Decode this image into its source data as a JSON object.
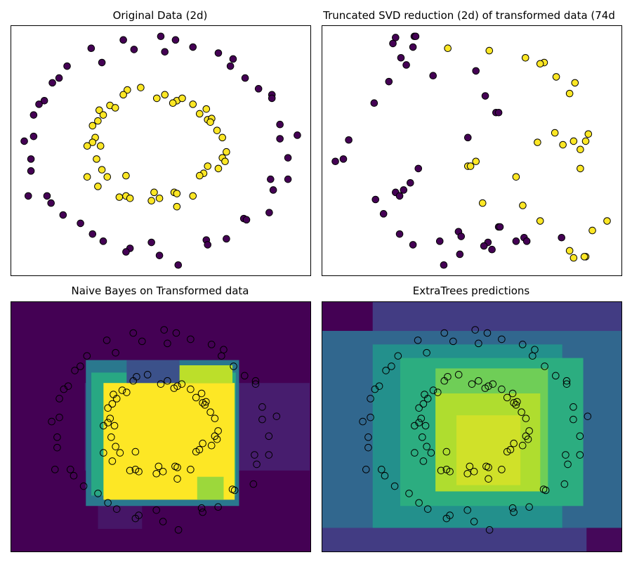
{
  "colors": {
    "class0": "#440154",
    "class1": "#fde725",
    "edge": "#000000",
    "colormap": "viridis"
  },
  "chart_data": [
    {
      "type": "scatter",
      "title": "Original Data (2d)",
      "xlim": [
        -1.12,
        1.12
      ],
      "ylim": [
        -1.05,
        1.05
      ],
      "grid": false,
      "axes_ticks": false,
      "series": [
        {
          "class": 0,
          "color": "#440154",
          "points": [
            [
              -0.28,
              0.93
            ],
            [
              0.0,
              0.96
            ],
            [
              0.11,
              0.93
            ],
            [
              -0.2,
              0.85
            ],
            [
              0.03,
              0.83
            ],
            [
              0.24,
              0.87
            ],
            [
              -0.52,
              0.86
            ],
            [
              -0.7,
              0.71
            ],
            [
              -0.44,
              0.74
            ],
            [
              0.43,
              0.82
            ],
            [
              0.54,
              0.77
            ],
            [
              0.52,
              0.71
            ],
            [
              -0.76,
              0.61
            ],
            [
              -0.81,
              0.57
            ],
            [
              0.63,
              0.61
            ],
            [
              -0.87,
              0.42
            ],
            [
              -0.91,
              0.39
            ],
            [
              0.73,
              0.52
            ],
            [
              0.83,
              0.47
            ],
            [
              0.83,
              0.44
            ],
            [
              -0.95,
              0.3
            ],
            [
              0.89,
              0.22
            ],
            [
              -1.02,
              0.08
            ],
            [
              -0.95,
              0.12
            ],
            [
              1.02,
              0.13
            ],
            [
              0.89,
              0.1
            ],
            [
              -0.97,
              -0.07
            ],
            [
              0.95,
              -0.06
            ],
            [
              -0.97,
              -0.17
            ],
            [
              0.82,
              -0.24
            ],
            [
              0.95,
              -0.24
            ],
            [
              0.84,
              -0.33
            ],
            [
              -0.99,
              -0.38
            ],
            [
              -0.85,
              -0.38
            ],
            [
              -0.82,
              -0.44
            ],
            [
              -0.73,
              -0.54
            ],
            [
              0.81,
              -0.52
            ],
            [
              0.62,
              -0.57
            ],
            [
              0.64,
              -0.58
            ],
            [
              -0.6,
              -0.61
            ],
            [
              -0.51,
              -0.7
            ],
            [
              -0.43,
              -0.76
            ],
            [
              0.49,
              -0.74
            ],
            [
              0.34,
              -0.75
            ],
            [
              0.35,
              -0.79
            ],
            [
              -0.07,
              -0.77
            ],
            [
              -0.23,
              -0.82
            ],
            [
              -0.26,
              -0.85
            ],
            [
              -0.01,
              -0.88
            ],
            [
              0.13,
              -0.96
            ]
          ]
        },
        {
          "class": 1,
          "color": "#fde725",
          "points": [
            [
              -0.25,
              0.51
            ],
            [
              -0.15,
              0.53
            ],
            [
              -0.28,
              0.47
            ],
            [
              -0.03,
              0.44
            ],
            [
              0.03,
              0.47
            ],
            [
              0.12,
              0.42
            ],
            [
              0.16,
              0.44
            ],
            [
              0.09,
              0.4
            ],
            [
              0.24,
              0.39
            ],
            [
              -0.38,
              0.38
            ],
            [
              -0.34,
              0.36
            ],
            [
              -0.46,
              0.34
            ],
            [
              -0.43,
              0.3
            ],
            [
              0.34,
              0.35
            ],
            [
              0.29,
              0.31
            ],
            [
              0.35,
              0.26
            ],
            [
              0.38,
              0.27
            ],
            [
              0.37,
              0.24
            ],
            [
              -0.51,
              0.21
            ],
            [
              -0.47,
              0.25
            ],
            [
              0.42,
              0.17
            ],
            [
              -0.49,
              0.11
            ],
            [
              -0.45,
              0.04
            ],
            [
              -0.51,
              0.07
            ],
            [
              -0.55,
              0.04
            ],
            [
              0.46,
              0.11
            ],
            [
              0.49,
              -0.01
            ],
            [
              0.46,
              -0.06
            ],
            [
              -0.48,
              -0.07
            ],
            [
              0.35,
              -0.13
            ],
            [
              -0.44,
              -0.16
            ],
            [
              0.48,
              -0.09
            ],
            [
              0.43,
              -0.15
            ],
            [
              -0.55,
              -0.22
            ],
            [
              -0.4,
              -0.22
            ],
            [
              -0.26,
              -0.21
            ],
            [
              0.32,
              -0.19
            ],
            [
              0.29,
              -0.21
            ],
            [
              -0.47,
              -0.3
            ],
            [
              -0.05,
              -0.35
            ],
            [
              0.1,
              -0.35
            ],
            [
              0.12,
              -0.36
            ],
            [
              0.24,
              -0.38
            ],
            [
              -0.31,
              -0.39
            ],
            [
              -0.26,
              -0.38
            ],
            [
              -0.23,
              -0.4
            ],
            [
              -0.01,
              -0.4
            ],
            [
              -0.07,
              -0.42
            ],
            [
              0.12,
              -0.47
            ]
          ]
        }
      ]
    },
    {
      "type": "scatter",
      "title": "Truncated SVD reduction (2d) of transformed data (74d",
      "xlim": [
        -1.12,
        1.12
      ],
      "ylim": [
        -1.05,
        1.05
      ],
      "grid": false,
      "axes_ticks": false,
      "series": [
        {
          "class": 0,
          "color": "#440154",
          "points": [
            [
              -0.57,
              0.95
            ],
            [
              -0.43,
              0.96
            ],
            [
              -0.42,
              0.96
            ],
            [
              -0.59,
              0.9
            ],
            [
              -0.44,
              0.87
            ],
            [
              -0.53,
              0.78
            ],
            [
              -0.49,
              0.72
            ],
            [
              -0.29,
              0.63
            ],
            [
              0.03,
              0.67
            ],
            [
              -0.62,
              0.58
            ],
            [
              0.1,
              0.46
            ],
            [
              -0.73,
              0.4
            ],
            [
              0.18,
              0.32
            ],
            [
              0.2,
              0.32
            ],
            [
              -0.03,
              0.11
            ],
            [
              -0.92,
              0.09
            ],
            [
              -1.02,
              -0.09
            ],
            [
              -0.96,
              -0.07
            ],
            [
              -0.4,
              -0.15
            ],
            [
              -0.46,
              -0.27
            ],
            [
              -0.51,
              -0.33
            ],
            [
              -0.57,
              -0.35
            ],
            [
              -0.54,
              -0.38
            ],
            [
              -0.72,
              -0.41
            ],
            [
              -0.66,
              -0.53
            ],
            [
              0.2,
              -0.64
            ],
            [
              0.21,
              -0.64
            ],
            [
              -0.1,
              -0.68
            ],
            [
              -0.08,
              -0.72
            ],
            [
              -0.54,
              -0.7
            ],
            [
              0.39,
              -0.73
            ],
            [
              0.41,
              -0.76
            ],
            [
              0.33,
              -0.76
            ],
            [
              0.12,
              -0.77
            ],
            [
              -0.24,
              -0.76
            ],
            [
              0.15,
              -0.83
            ],
            [
              0.09,
              -0.8
            ],
            [
              -0.44,
              -0.79
            ],
            [
              -0.09,
              -0.87
            ],
            [
              -0.21,
              -0.96
            ],
            [
              0.67,
              -0.73
            ]
          ]
        },
        {
          "class": 1,
          "color": "#fde725",
          "points": [
            [
              -0.18,
              0.86
            ],
            [
              0.13,
              0.84
            ],
            [
              0.4,
              0.78
            ],
            [
              0.54,
              0.74
            ],
            [
              0.51,
              0.73
            ],
            [
              0.63,
              0.62
            ],
            [
              0.77,
              0.57
            ],
            [
              0.73,
              0.48
            ],
            [
              0.87,
              0.14
            ],
            [
              0.62,
              0.15
            ],
            [
              0.76,
              0.08
            ],
            [
              0.68,
              0.05
            ],
            [
              0.85,
              0.08
            ],
            [
              0.81,
              0.01
            ],
            [
              0.49,
              0.07
            ],
            [
              0.03,
              -0.09
            ],
            [
              -0.03,
              -0.13
            ],
            [
              -0.01,
              -0.13
            ],
            [
              0.33,
              -0.22
            ],
            [
              0.81,
              -0.15
            ],
            [
              0.08,
              -0.44
            ],
            [
              0.38,
              -0.46
            ],
            [
              0.51,
              -0.59
            ],
            [
              1.01,
              -0.59
            ],
            [
              0.9,
              -0.67
            ],
            [
              0.73,
              -0.84
            ],
            [
              0.76,
              -0.9
            ],
            [
              0.85,
              -0.89
            ],
            [
              0.84,
              -0.89
            ]
          ]
        }
      ]
    },
    {
      "type": "heatmap",
      "title": "Naive Bayes on Transformed data",
      "xlim": [
        -1.39,
        1.33
      ],
      "ylim": [
        -1.17,
        1.23
      ],
      "grid": false,
      "axes_ticks": false,
      "background_value": 0.0,
      "decision_regions": [
        {
          "x": [
            -0.72,
            1.32
          ],
          "y": [
            -0.39,
            0.45
          ],
          "value": 0.08
        },
        {
          "x": [
            -0.6,
            -0.2
          ],
          "y": [
            -0.95,
            -0.67
          ],
          "value": 0.06
        },
        {
          "x": [
            -0.71,
            0.68
          ],
          "y": [
            -0.73,
            0.67
          ],
          "value": 0.4
        },
        {
          "x": [
            -0.66,
            0.65
          ],
          "y": [
            -0.63,
            0.55
          ],
          "value": 0.6
        },
        {
          "x": [
            -0.55,
            0.64
          ],
          "y": [
            -0.67,
            0.45
          ],
          "value": 1.0
        },
        {
          "x": [
            -0.34,
            0.14
          ],
          "y": [
            0.45,
            0.67
          ],
          "value": 0.25
        },
        {
          "x": [
            0.14,
            0.62
          ],
          "y": [
            0.45,
            0.62
          ],
          "value": 0.9
        },
        {
          "x": [
            0.3,
            0.54
          ],
          "y": [
            -0.67,
            -0.45
          ],
          "value": 0.85
        }
      ],
      "series_from": 0
    },
    {
      "type": "heatmap",
      "title": "ExtraTrees predictions",
      "xlim": [
        -1.39,
        1.33
      ],
      "ylim": [
        -1.17,
        1.23
      ],
      "grid": false,
      "axes_ticks": false,
      "background_value": 0.18,
      "decision_regions": [
        {
          "x": [
            -1.39,
            -0.93
          ],
          "y": [
            0.95,
            1.23
          ],
          "value": 0.0
        },
        {
          "x": [
            1.01,
            1.33
          ],
          "y": [
            -1.17,
            -0.9
          ],
          "value": 0.02
        },
        {
          "x": [
            -1.39,
            1.33
          ],
          "y": [
            -0.94,
            0.95
          ],
          "value": 0.33
        },
        {
          "x": [
            -0.93,
            0.79
          ],
          "y": [
            -0.94,
            0.82
          ],
          "value": 0.5
        },
        {
          "x": [
            -0.68,
            0.98
          ],
          "y": [
            -0.73,
            0.69
          ],
          "value": 0.62
        },
        {
          "x": [
            -0.36,
            0.66
          ],
          "y": [
            -0.59,
            0.59
          ],
          "value": 0.78
        },
        {
          "x": [
            -0.36,
            0.59
          ],
          "y": [
            -0.59,
            0.35
          ],
          "value": 0.88
        },
        {
          "x": [
            -0.17,
            0.41
          ],
          "y": [
            -0.53,
            0.14
          ],
          "value": 0.93
        }
      ],
      "series_from": 0
    }
  ]
}
